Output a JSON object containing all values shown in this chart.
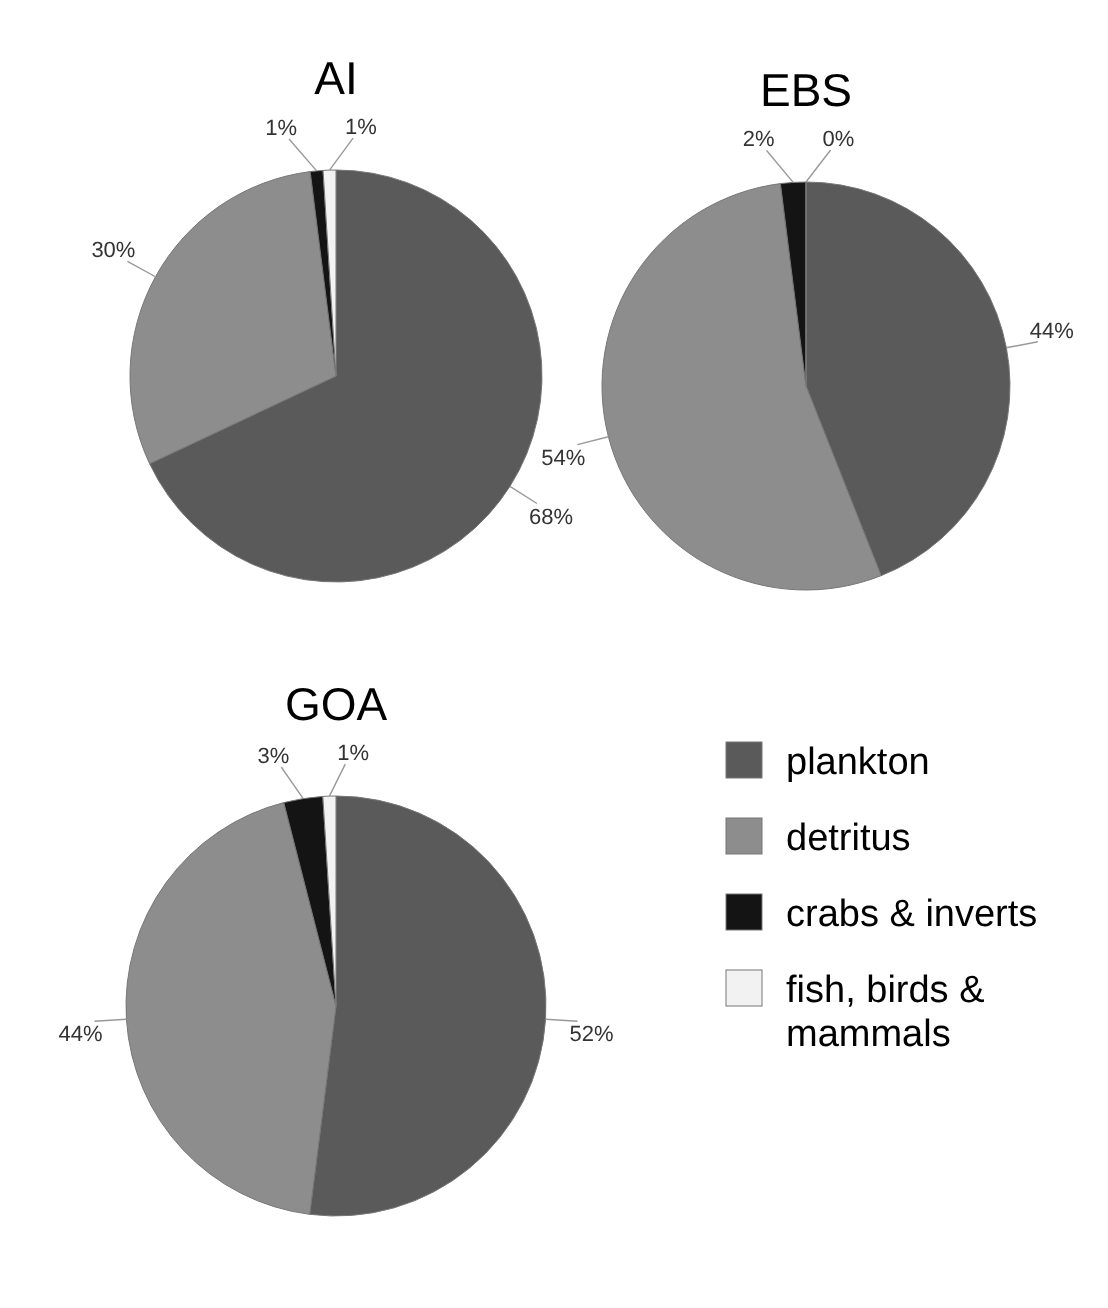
{
  "chart_data": [
    {
      "type": "pie",
      "title": "AI",
      "categories": [
        "plankton",
        "detritus",
        "crabs & inverts",
        "fish, birds & mammals"
      ],
      "values": [
        68,
        30,
        1,
        1
      ],
      "value_labels": [
        "68%",
        "30%",
        "1%",
        "1%"
      ],
      "colors": [
        "#5a5a5a",
        "#8d8d8d",
        "#141414",
        "#f2f2f2"
      ],
      "legend": "bottom right"
    },
    {
      "type": "pie",
      "title": "EBS",
      "categories": [
        null,
        null,
        null,
        null
      ],
      "values": [
        44,
        54,
        2,
        0
      ],
      "value_labels": [
        "44%",
        "54%",
        "2%",
        "0%"
      ],
      "colors": [
        "#5a5a5a",
        "#8d8d8d",
        "#141414",
        "#f2f2f2"
      ]
    },
    {
      "type": "pie",
      "title": "GOA",
      "categories": [
        null,
        null,
        null,
        null
      ],
      "values": [
        52,
        44,
        3,
        1
      ],
      "value_labels": [
        "52%",
        "44%",
        "3%",
        "1%"
      ],
      "colors": [
        "#5a5a5a",
        "#8d8d8d",
        "#141414",
        "#f2f2f2"
      ]
    }
  ]
}
